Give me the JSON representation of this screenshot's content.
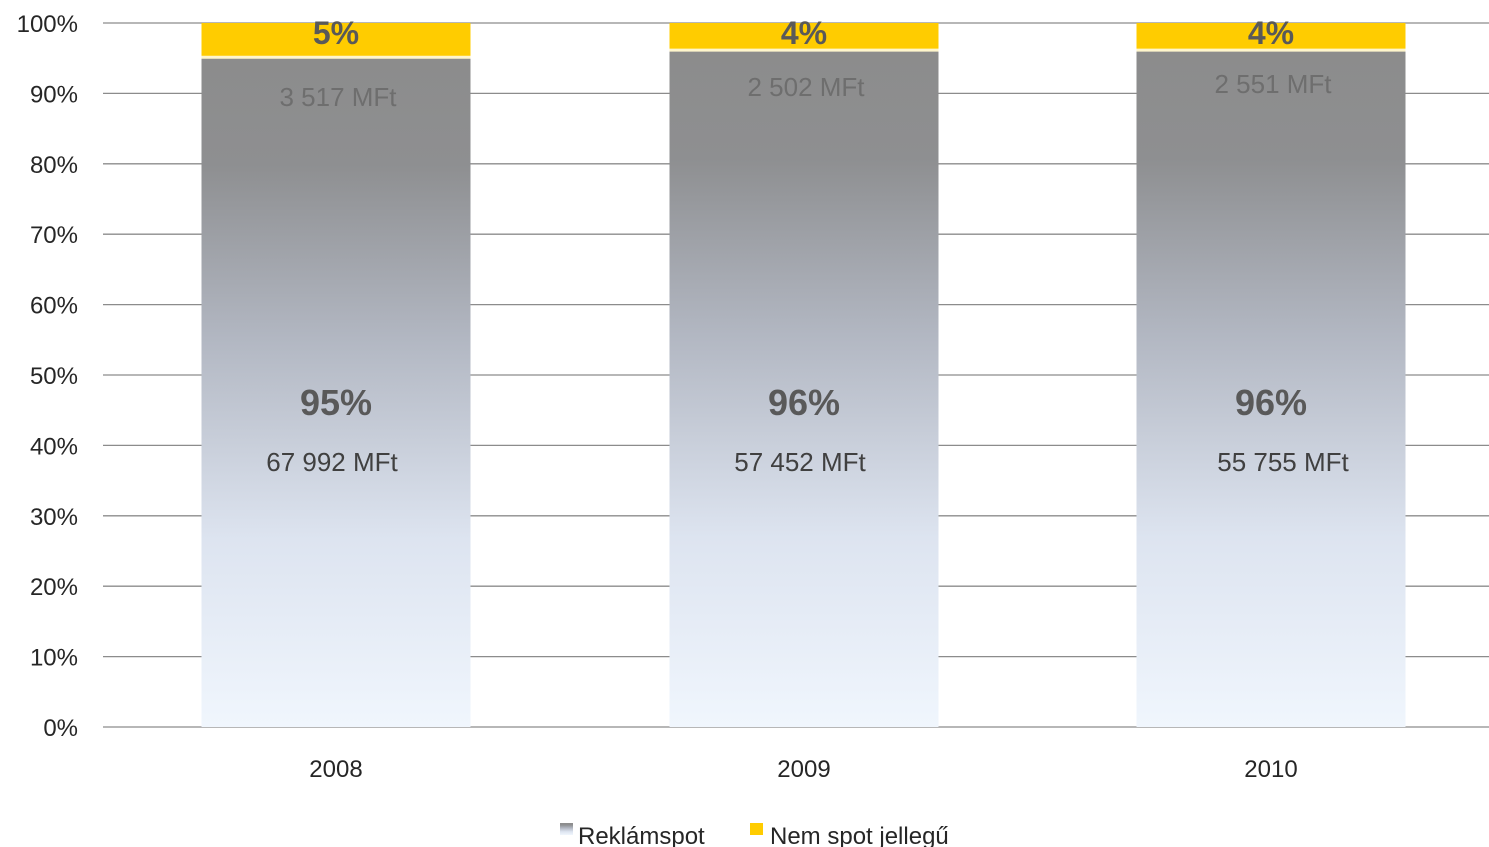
{
  "chart_data": {
    "type": "bar",
    "stacked": true,
    "percent_stacked": true,
    "categories": [
      "2008",
      "2009",
      "2010"
    ],
    "series": [
      {
        "name": "Reklámspot",
        "values": [
          95,
          96,
          96
        ],
        "value_labels": [
          "95%",
          "96%",
          "96%"
        ],
        "amount_labels": [
          "67 992 MFt",
          "57 452 MFt",
          "55 755 MFt"
        ],
        "color_top": "#8c8c8c",
        "color_mid": "#b3b8c4",
        "color_bottom": "#eef4fc"
      },
      {
        "name": "Nem spot jellegű",
        "values": [
          5,
          4,
          4
        ],
        "value_labels": [
          "5%",
          "4%",
          "4%"
        ],
        "amount_labels": [
          "3 517 MFt",
          "2 502 MFt",
          "2 551 MFt"
        ],
        "color": "#ffcc00"
      }
    ],
    "y_ticks": [
      "0%",
      "10%",
      "20%",
      "30%",
      "40%",
      "50%",
      "60%",
      "70%",
      "80%",
      "90%",
      "100%"
    ],
    "ylim": [
      0,
      100
    ],
    "grid": true,
    "legend_position": "bottom",
    "title": "",
    "xlabel": "",
    "ylabel": ""
  }
}
